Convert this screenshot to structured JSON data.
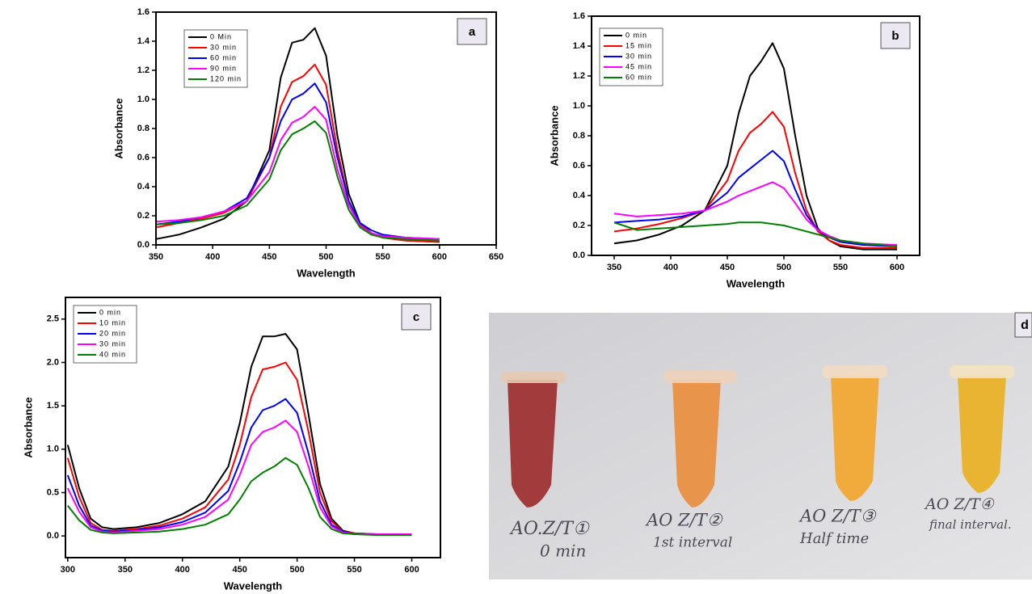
{
  "chart_data": [
    {
      "type": "line",
      "panel_label": "a",
      "xlabel": "Wavelength",
      "ylabel": "Absorbance",
      "x": [
        350,
        370,
        390,
        410,
        430,
        450,
        460,
        470,
        480,
        490,
        500,
        510,
        520,
        530,
        540,
        550,
        570,
        600
      ],
      "series": [
        {
          "name": "0 Min",
          "color": "#000000",
          "values": [
            0.04,
            0.07,
            0.12,
            0.18,
            0.3,
            0.65,
            1.15,
            1.39,
            1.41,
            1.49,
            1.3,
            0.75,
            0.35,
            0.15,
            0.08,
            0.05,
            0.03,
            0.02
          ]
        },
        {
          "name": "30 min",
          "color": "#ff0000",
          "values": [
            0.12,
            0.15,
            0.18,
            0.22,
            0.3,
            0.6,
            0.95,
            1.12,
            1.16,
            1.24,
            1.1,
            0.65,
            0.3,
            0.14,
            0.08,
            0.05,
            0.03,
            0.02
          ]
        },
        {
          "name": "60 min",
          "color": "#0000ff",
          "values": [
            0.14,
            0.16,
            0.19,
            0.23,
            0.32,
            0.6,
            0.85,
            1.0,
            1.04,
            1.11,
            0.98,
            0.6,
            0.3,
            0.15,
            0.1,
            0.07,
            0.05,
            0.04
          ]
        },
        {
          "name": "90 min",
          "color": "#ff00ff",
          "values": [
            0.16,
            0.17,
            0.19,
            0.23,
            0.3,
            0.5,
            0.72,
            0.84,
            0.88,
            0.95,
            0.86,
            0.52,
            0.27,
            0.13,
            0.08,
            0.06,
            0.05,
            0.04
          ]
        },
        {
          "name": "120 min",
          "color": "#008000",
          "values": [
            0.14,
            0.15,
            0.17,
            0.2,
            0.27,
            0.45,
            0.65,
            0.76,
            0.8,
            0.85,
            0.77,
            0.47,
            0.24,
            0.12,
            0.07,
            0.05,
            0.04,
            0.03
          ]
        }
      ],
      "xlim": [
        350,
        650
      ],
      "xticks": [
        350,
        400,
        450,
        500,
        550,
        600,
        650
      ],
      "ylim": [
        0,
        1.6
      ],
      "yticks": [
        {
          "value": 0,
          "label": "0.0"
        },
        0.2,
        0.4,
        0.6,
        0.8,
        {
          "value": 1,
          "label": "1.0"
        },
        1.2,
        1.4,
        1.6
      ]
    },
    {
      "type": "line",
      "panel_label": "b",
      "xlabel": "Wavelength",
      "ylabel": "Absorbance",
      "x": [
        350,
        370,
        390,
        410,
        430,
        450,
        460,
        470,
        480,
        490,
        500,
        510,
        520,
        530,
        540,
        550,
        570,
        600
      ],
      "series": [
        {
          "name": "0 min",
          "color": "#000000",
          "values": [
            0.08,
            0.1,
            0.14,
            0.2,
            0.3,
            0.6,
            0.95,
            1.2,
            1.3,
            1.42,
            1.25,
            0.8,
            0.4,
            0.18,
            0.1,
            0.06,
            0.04,
            0.04
          ]
        },
        {
          "name": "15 min",
          "color": "#ff0000",
          "values": [
            0.16,
            0.18,
            0.21,
            0.25,
            0.3,
            0.5,
            0.7,
            0.82,
            0.88,
            0.96,
            0.86,
            0.55,
            0.3,
            0.16,
            0.1,
            0.07,
            0.05,
            0.05
          ]
        },
        {
          "name": "30 min",
          "color": "#0000ff",
          "values": [
            0.22,
            0.23,
            0.24,
            0.26,
            0.3,
            0.42,
            0.52,
            0.58,
            0.64,
            0.7,
            0.63,
            0.44,
            0.27,
            0.17,
            0.12,
            0.09,
            0.07,
            0.06
          ]
        },
        {
          "name": "45 min",
          "color": "#ff00ff",
          "values": [
            0.28,
            0.26,
            0.27,
            0.28,
            0.3,
            0.36,
            0.4,
            0.43,
            0.46,
            0.49,
            0.45,
            0.35,
            0.24,
            0.17,
            0.13,
            0.1,
            0.08,
            0.07
          ]
        },
        {
          "name": "60 min",
          "color": "#008000",
          "values": [
            0.22,
            0.17,
            0.18,
            0.19,
            0.2,
            0.21,
            0.22,
            0.22,
            0.22,
            0.21,
            0.2,
            0.18,
            0.16,
            0.14,
            0.12,
            0.1,
            0.08,
            0.06
          ]
        }
      ],
      "xlim": [
        330,
        620
      ],
      "xticks": [
        350,
        400,
        450,
        500,
        550,
        600
      ],
      "ylim": [
        0,
        1.6
      ],
      "yticks": [
        {
          "value": 0,
          "label": "0.0"
        },
        0.2,
        0.4,
        0.6,
        0.8,
        {
          "value": 1,
          "label": "1.0"
        },
        1.2,
        1.4,
        1.6
      ]
    },
    {
      "type": "line",
      "panel_label": "c",
      "xlabel": "Wavelength",
      "ylabel": "Absorbance",
      "x": [
        300,
        310,
        320,
        330,
        340,
        360,
        380,
        400,
        420,
        440,
        450,
        460,
        470,
        480,
        490,
        500,
        510,
        520,
        530,
        540,
        550,
        570,
        600
      ],
      "series": [
        {
          "name": "0 min",
          "color": "#000000",
          "values": [
            1.05,
            0.55,
            0.2,
            0.1,
            0.08,
            0.1,
            0.15,
            0.25,
            0.4,
            0.8,
            1.3,
            1.95,
            2.3,
            2.3,
            2.33,
            2.15,
            1.4,
            0.6,
            0.2,
            0.06,
            0.03,
            0.02,
            0.02
          ]
        },
        {
          "name": "10 min",
          "color": "#ff0000",
          "values": [
            0.9,
            0.45,
            0.15,
            0.07,
            0.06,
            0.08,
            0.12,
            0.2,
            0.33,
            0.65,
            1.05,
            1.6,
            1.92,
            1.95,
            2.0,
            1.8,
            1.2,
            0.5,
            0.17,
            0.05,
            0.03,
            0.02,
            0.02
          ]
        },
        {
          "name": "20 min",
          "color": "#0000ff",
          "values": [
            0.7,
            0.35,
            0.12,
            0.06,
            0.05,
            0.07,
            0.1,
            0.16,
            0.27,
            0.52,
            0.85,
            1.25,
            1.45,
            1.5,
            1.58,
            1.42,
            0.95,
            0.4,
            0.13,
            0.05,
            0.02,
            0.02,
            0.02
          ]
        },
        {
          "name": "30 min",
          "color": "#ff00ff",
          "values": [
            0.55,
            0.28,
            0.1,
            0.05,
            0.04,
            0.06,
            0.08,
            0.13,
            0.22,
            0.42,
            0.7,
            1.05,
            1.2,
            1.25,
            1.33,
            1.2,
            0.8,
            0.33,
            0.11,
            0.04,
            0.02,
            0.02,
            0.02
          ]
        },
        {
          "name": "40 min",
          "color": "#008000",
          "values": [
            0.35,
            0.18,
            0.07,
            0.04,
            0.03,
            0.04,
            0.05,
            0.08,
            0.13,
            0.25,
            0.42,
            0.63,
            0.73,
            0.8,
            0.9,
            0.82,
            0.55,
            0.22,
            0.08,
            0.03,
            0.02,
            0.01,
            0.01
          ]
        }
      ],
      "xlim": [
        298,
        625
      ],
      "xticks": [
        300,
        350,
        400,
        450,
        500,
        550,
        600
      ],
      "ylim": [
        -0.25,
        2.75
      ],
      "yticks": [
        {
          "value": 0,
          "label": "0.0"
        },
        0.5,
        {
          "value": 1,
          "label": "1.0"
        },
        1.5,
        {
          "value": 2,
          "label": "2.0"
        },
        2.5
      ]
    }
  ],
  "photo": {
    "panel_label": "d",
    "tubes": [
      {
        "label": "AO.Z/T①",
        "caption": "0 min"
      },
      {
        "label": "AO Z/T②",
        "caption": "1st interval"
      },
      {
        "label": "AO Z/T③",
        "caption": "Half time"
      },
      {
        "label": "AO Z/T④",
        "caption": "final interval."
      }
    ]
  }
}
